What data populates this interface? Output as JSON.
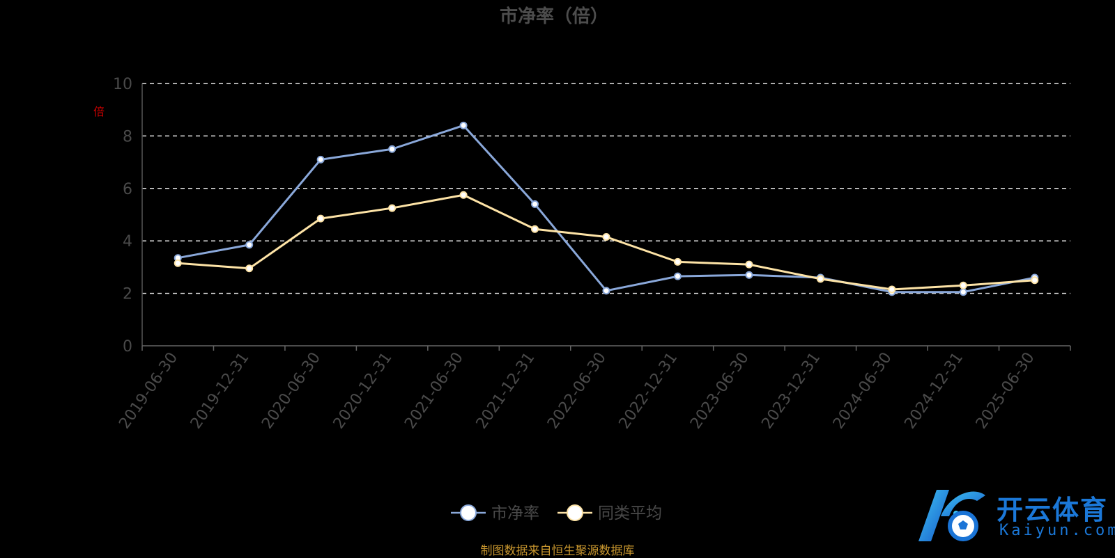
{
  "chart_data": {
    "type": "line",
    "title": "市净率（倍）",
    "ylabel": "倍",
    "xlabel": "",
    "ylim": [
      0,
      10
    ],
    "yticks": [
      0,
      2,
      4,
      6,
      8,
      10
    ],
    "grid": "dashed horizontal",
    "legend_position": "bottom-center",
    "categories": [
      "2019-06-30",
      "2019-12-31",
      "2020-06-30",
      "2020-12-31",
      "2021-06-30",
      "2021-12-31",
      "2022-06-30",
      "2022-12-31",
      "2023-06-30",
      "2023-12-31",
      "2024-06-30",
      "2024-12-31",
      "2025-06-30"
    ],
    "series": [
      {
        "name": "市净率",
        "color": "#8aa8da",
        "values": [
          3.35,
          3.85,
          7.1,
          7.5,
          8.4,
          5.4,
          2.1,
          2.65,
          2.7,
          2.6,
          2.05,
          2.05,
          2.6
        ]
      },
      {
        "name": "同类平均",
        "color": "#fde3a6",
        "values": [
          3.15,
          2.95,
          4.85,
          5.25,
          5.75,
          4.45,
          4.15,
          3.2,
          3.1,
          2.55,
          2.15,
          2.3,
          2.5
        ]
      }
    ]
  },
  "footer": {
    "source": "制图数据来自恒生聚源数据库"
  },
  "logo": {
    "name_cn": "开云体育",
    "name_en": "Kaiyun.com"
  }
}
